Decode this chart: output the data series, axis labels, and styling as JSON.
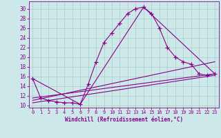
{
  "xlabel": "Windchill (Refroidissement éolien,°C)",
  "background_color": "#cce8e8",
  "grid_color": "#aacccc",
  "line_color": "#880088",
  "x_ticks": [
    0,
    1,
    2,
    3,
    4,
    5,
    6,
    7,
    8,
    9,
    10,
    11,
    12,
    13,
    14,
    15,
    16,
    17,
    18,
    19,
    20,
    21,
    22,
    23
  ],
  "y_ticks": [
    10,
    12,
    14,
    16,
    18,
    20,
    22,
    24,
    26,
    28,
    30
  ],
  "xlim": [
    -0.5,
    23.5
  ],
  "ylim": [
    9.5,
    31.5
  ],
  "line1_x": [
    0,
    1,
    2,
    3,
    4,
    5,
    6,
    7,
    8,
    9,
    10,
    11,
    12,
    13,
    14,
    15,
    16,
    17,
    18,
    19,
    20,
    21,
    22,
    23
  ],
  "line1_y": [
    15.5,
    11.5,
    11.0,
    10.7,
    10.5,
    10.5,
    10.2,
    14.3,
    19.0,
    23.0,
    25.0,
    27.0,
    29.0,
    30.0,
    30.3,
    29.0,
    26.0,
    22.0,
    20.0,
    19.0,
    18.5,
    16.5,
    16.2,
    16.5
  ],
  "line2_x": [
    0,
    6,
    14,
    23
  ],
  "line2_y": [
    15.5,
    10.2,
    30.3,
    16.5
  ],
  "line3_x": [
    0,
    23
  ],
  "line3_y": [
    11.5,
    16.5
  ],
  "line4_x": [
    0,
    23
  ],
  "line4_y": [
    11.0,
    19.0
  ],
  "line5_x": [
    0,
    23
  ],
  "line5_y": [
    10.5,
    16.2
  ]
}
